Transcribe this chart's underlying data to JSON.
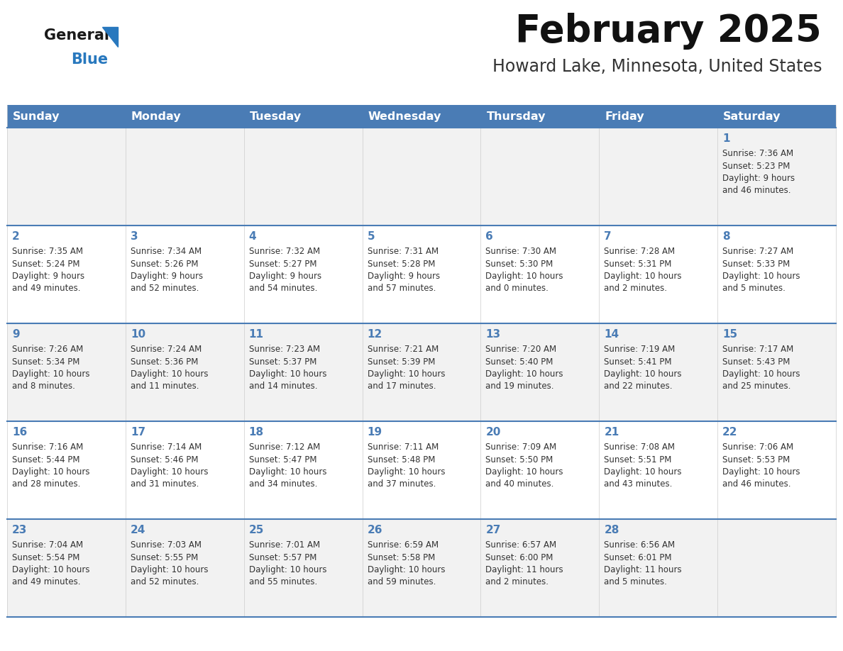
{
  "title": "February 2025",
  "subtitle": "Howard Lake, Minnesota, United States",
  "days_of_week": [
    "Sunday",
    "Monday",
    "Tuesday",
    "Wednesday",
    "Thursday",
    "Friday",
    "Saturday"
  ],
  "header_bg": "#4a7cb5",
  "header_text": "#ffffff",
  "cell_bg_light": "#f2f2f2",
  "cell_bg_white": "#ffffff",
  "cell_border_color": "#4a7cb5",
  "day_number_color": "#4a7cb5",
  "text_color": "#333333",
  "logo_general_color": "#1a1a1a",
  "logo_blue_color": "#2878be",
  "weeks": [
    [
      {
        "day": 0,
        "info": ""
      },
      {
        "day": 0,
        "info": ""
      },
      {
        "day": 0,
        "info": ""
      },
      {
        "day": 0,
        "info": ""
      },
      {
        "day": 0,
        "info": ""
      },
      {
        "day": 0,
        "info": ""
      },
      {
        "day": 1,
        "info": "Sunrise: 7:36 AM\nSunset: 5:23 PM\nDaylight: 9 hours\nand 46 minutes."
      }
    ],
    [
      {
        "day": 2,
        "info": "Sunrise: 7:35 AM\nSunset: 5:24 PM\nDaylight: 9 hours\nand 49 minutes."
      },
      {
        "day": 3,
        "info": "Sunrise: 7:34 AM\nSunset: 5:26 PM\nDaylight: 9 hours\nand 52 minutes."
      },
      {
        "day": 4,
        "info": "Sunrise: 7:32 AM\nSunset: 5:27 PM\nDaylight: 9 hours\nand 54 minutes."
      },
      {
        "day": 5,
        "info": "Sunrise: 7:31 AM\nSunset: 5:28 PM\nDaylight: 9 hours\nand 57 minutes."
      },
      {
        "day": 6,
        "info": "Sunrise: 7:30 AM\nSunset: 5:30 PM\nDaylight: 10 hours\nand 0 minutes."
      },
      {
        "day": 7,
        "info": "Sunrise: 7:28 AM\nSunset: 5:31 PM\nDaylight: 10 hours\nand 2 minutes."
      },
      {
        "day": 8,
        "info": "Sunrise: 7:27 AM\nSunset: 5:33 PM\nDaylight: 10 hours\nand 5 minutes."
      }
    ],
    [
      {
        "day": 9,
        "info": "Sunrise: 7:26 AM\nSunset: 5:34 PM\nDaylight: 10 hours\nand 8 minutes."
      },
      {
        "day": 10,
        "info": "Sunrise: 7:24 AM\nSunset: 5:36 PM\nDaylight: 10 hours\nand 11 minutes."
      },
      {
        "day": 11,
        "info": "Sunrise: 7:23 AM\nSunset: 5:37 PM\nDaylight: 10 hours\nand 14 minutes."
      },
      {
        "day": 12,
        "info": "Sunrise: 7:21 AM\nSunset: 5:39 PM\nDaylight: 10 hours\nand 17 minutes."
      },
      {
        "day": 13,
        "info": "Sunrise: 7:20 AM\nSunset: 5:40 PM\nDaylight: 10 hours\nand 19 minutes."
      },
      {
        "day": 14,
        "info": "Sunrise: 7:19 AM\nSunset: 5:41 PM\nDaylight: 10 hours\nand 22 minutes."
      },
      {
        "day": 15,
        "info": "Sunrise: 7:17 AM\nSunset: 5:43 PM\nDaylight: 10 hours\nand 25 minutes."
      }
    ],
    [
      {
        "day": 16,
        "info": "Sunrise: 7:16 AM\nSunset: 5:44 PM\nDaylight: 10 hours\nand 28 minutes."
      },
      {
        "day": 17,
        "info": "Sunrise: 7:14 AM\nSunset: 5:46 PM\nDaylight: 10 hours\nand 31 minutes."
      },
      {
        "day": 18,
        "info": "Sunrise: 7:12 AM\nSunset: 5:47 PM\nDaylight: 10 hours\nand 34 minutes."
      },
      {
        "day": 19,
        "info": "Sunrise: 7:11 AM\nSunset: 5:48 PM\nDaylight: 10 hours\nand 37 minutes."
      },
      {
        "day": 20,
        "info": "Sunrise: 7:09 AM\nSunset: 5:50 PM\nDaylight: 10 hours\nand 40 minutes."
      },
      {
        "day": 21,
        "info": "Sunrise: 7:08 AM\nSunset: 5:51 PM\nDaylight: 10 hours\nand 43 minutes."
      },
      {
        "day": 22,
        "info": "Sunrise: 7:06 AM\nSunset: 5:53 PM\nDaylight: 10 hours\nand 46 minutes."
      }
    ],
    [
      {
        "day": 23,
        "info": "Sunrise: 7:04 AM\nSunset: 5:54 PM\nDaylight: 10 hours\nand 49 minutes."
      },
      {
        "day": 24,
        "info": "Sunrise: 7:03 AM\nSunset: 5:55 PM\nDaylight: 10 hours\nand 52 minutes."
      },
      {
        "day": 25,
        "info": "Sunrise: 7:01 AM\nSunset: 5:57 PM\nDaylight: 10 hours\nand 55 minutes."
      },
      {
        "day": 26,
        "info": "Sunrise: 6:59 AM\nSunset: 5:58 PM\nDaylight: 10 hours\nand 59 minutes."
      },
      {
        "day": 27,
        "info": "Sunrise: 6:57 AM\nSunset: 6:00 PM\nDaylight: 11 hours\nand 2 minutes."
      },
      {
        "day": 28,
        "info": "Sunrise: 6:56 AM\nSunset: 6:01 PM\nDaylight: 11 hours\nand 5 minutes."
      },
      {
        "day": 0,
        "info": ""
      }
    ]
  ]
}
